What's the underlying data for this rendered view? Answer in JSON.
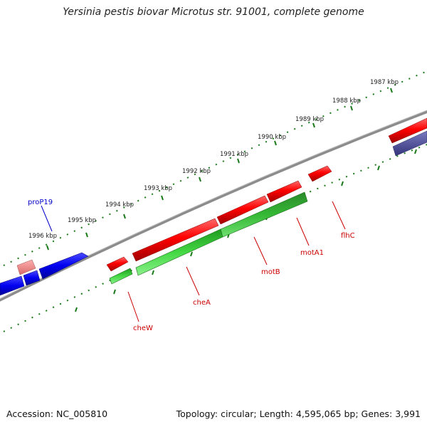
{
  "title": "Yersinia pestis biovar Microtus str. 91001, complete genome",
  "accession": "Accession: NC_005810",
  "summary": "Topology: circular; Length: 4,595,065 bp; Genes: 3,991",
  "colors": {
    "forward_gene": "#ff0000",
    "forward_gene_light": "#f08080",
    "reverse_gene": "#0000ff",
    "reverse_gene_dark": "#4b4b9b",
    "cds_band": "#2e9a2e",
    "cds_band_light": "#3fd43f",
    "backbone": "#8c8c8c",
    "ticks": "#1a7a1a",
    "label_forward": "#cc0000",
    "label_reverse": "#0000cc"
  },
  "scale_labels": [
    "1987 kbp",
    "1988 kbp",
    "1989 kbp",
    "1990 kbp",
    "1991 kbp",
    "1992 kbp",
    "1993 kbp",
    "1994 kbp",
    "1995 kbp",
    "1996 kbp"
  ],
  "gene_labels": [
    {
      "name": "proP19",
      "strand": "reverse"
    },
    {
      "name": "cheW",
      "strand": "forward"
    },
    {
      "name": "cheA",
      "strand": "forward"
    },
    {
      "name": "motB",
      "strand": "forward"
    },
    {
      "name": "motA1",
      "strand": "forward"
    },
    {
      "name": "flhC",
      "strand": "forward"
    }
  ]
}
